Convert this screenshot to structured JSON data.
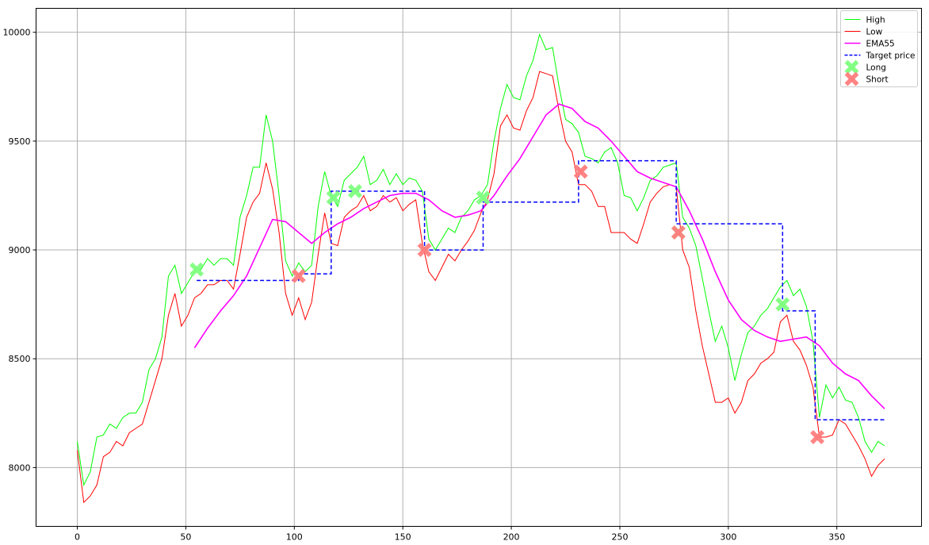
{
  "chart_data": {
    "type": "line",
    "title": "",
    "xlabel": "",
    "ylabel": "",
    "xlim": [
      -19,
      389
    ],
    "ylim": [
      7730,
      10110
    ],
    "xticks": [
      0,
      50,
      100,
      150,
      200,
      250,
      300,
      350
    ],
    "yticks": [
      8000,
      8500,
      9000,
      9500,
      10000
    ],
    "grid": true,
    "legend_position": "top-right",
    "colors": {
      "high": "#00ff00",
      "low": "#ff0000",
      "ema": "#ff00ff",
      "target": "#0000ff",
      "long": "#80ff80",
      "short": "#ff7f7f"
    },
    "series": [
      {
        "name": "High",
        "x": [
          0,
          3,
          6,
          9,
          12,
          15,
          18,
          21,
          24,
          27,
          30,
          33,
          36,
          39,
          42,
          45,
          48,
          51,
          54,
          57,
          60,
          63,
          66,
          69,
          72,
          75,
          78,
          81,
          84,
          87,
          90,
          93,
          96,
          99,
          102,
          105,
          108,
          111,
          114,
          117,
          120,
          123,
          126,
          129,
          132,
          135,
          138,
          141,
          144,
          147,
          150,
          153,
          156,
          159,
          162,
          165,
          168,
          171,
          174,
          177,
          180,
          183,
          186,
          189,
          192,
          195,
          198,
          201,
          204,
          207,
          210,
          213,
          216,
          219,
          222,
          225,
          228,
          231,
          234,
          237,
          240,
          243,
          246,
          249,
          252,
          255,
          258,
          261,
          264,
          267,
          270,
          273,
          276,
          279,
          282,
          285,
          288,
          291,
          294,
          297,
          300,
          303,
          306,
          309,
          312,
          315,
          318,
          321,
          324,
          327,
          330,
          333,
          336,
          339,
          342,
          345,
          348,
          351,
          354,
          357,
          360,
          363,
          366,
          369,
          372
        ],
        "values": [
          8120,
          7920,
          7980,
          8140,
          8150,
          8200,
          8180,
          8230,
          8250,
          8250,
          8300,
          8450,
          8500,
          8600,
          8880,
          8930,
          8800,
          8850,
          8900,
          8910,
          8960,
          8930,
          8960,
          8960,
          8930,
          9150,
          9250,
          9380,
          9380,
          9620,
          9500,
          9250,
          8950,
          8880,
          8940,
          8900,
          8930,
          9200,
          9360,
          9250,
          9200,
          9320,
          9350,
          9380,
          9430,
          9300,
          9320,
          9370,
          9300,
          9350,
          9300,
          9330,
          9320,
          9270,
          9050,
          9000,
          9050,
          9100,
          9080,
          9150,
          9180,
          9230,
          9250,
          9300,
          9500,
          9650,
          9760,
          9700,
          9690,
          9800,
          9870,
          9990,
          9920,
          9930,
          9750,
          9600,
          9580,
          9540,
          9430,
          9420,
          9400,
          9450,
          9470,
          9400,
          9250,
          9240,
          9180,
          9240,
          9320,
          9340,
          9380,
          9390,
          9400,
          9150,
          9100,
          9020,
          8870,
          8720,
          8580,
          8650,
          8550,
          8400,
          8520,
          8620,
          8650,
          8700,
          8730,
          8780,
          8830,
          8860,
          8790,
          8820,
          8740,
          8580,
          8230,
          8380,
          8320,
          8370,
          8310,
          8300,
          8230,
          8120,
          8070,
          8120,
          8100
        ]
      },
      {
        "name": "Low",
        "x": [
          0,
          3,
          6,
          9,
          12,
          15,
          18,
          21,
          24,
          27,
          30,
          33,
          36,
          39,
          42,
          45,
          48,
          51,
          54,
          57,
          60,
          63,
          66,
          69,
          72,
          75,
          78,
          81,
          84,
          87,
          90,
          93,
          96,
          99,
          102,
          105,
          108,
          111,
          114,
          117,
          120,
          123,
          126,
          129,
          132,
          135,
          138,
          141,
          144,
          147,
          150,
          153,
          156,
          159,
          162,
          165,
          168,
          171,
          174,
          177,
          180,
          183,
          186,
          189,
          192,
          195,
          198,
          201,
          204,
          207,
          210,
          213,
          216,
          219,
          222,
          225,
          228,
          231,
          234,
          237,
          240,
          243,
          246,
          249,
          252,
          255,
          258,
          261,
          264,
          267,
          270,
          273,
          276,
          279,
          282,
          285,
          288,
          291,
          294,
          297,
          300,
          303,
          306,
          309,
          312,
          315,
          318,
          321,
          324,
          327,
          330,
          333,
          336,
          339,
          342,
          345,
          348,
          351,
          354,
          357,
          360,
          363,
          366,
          369,
          372
        ],
        "values": [
          8080,
          7840,
          7870,
          7920,
          8050,
          8070,
          8120,
          8100,
          8160,
          8180,
          8200,
          8300,
          8400,
          8500,
          8700,
          8800,
          8650,
          8700,
          8780,
          8800,
          8840,
          8840,
          8860,
          8860,
          8820,
          8980,
          9150,
          9220,
          9260,
          9400,
          9280,
          9080,
          8800,
          8700,
          8780,
          8680,
          8760,
          8980,
          9170,
          9030,
          9020,
          9150,
          9180,
          9200,
          9250,
          9180,
          9200,
          9250,
          9220,
          9240,
          9180,
          9210,
          9230,
          9030,
          8900,
          8860,
          8920,
          8980,
          8950,
          9000,
          9040,
          9090,
          9170,
          9230,
          9350,
          9570,
          9620,
          9560,
          9550,
          9640,
          9700,
          9820,
          9810,
          9800,
          9640,
          9500,
          9450,
          9300,
          9300,
          9270,
          9200,
          9200,
          9080,
          9080,
          9080,
          9050,
          9030,
          9120,
          9220,
          9260,
          9290,
          9300,
          9290,
          9000,
          8920,
          8720,
          8560,
          8430,
          8300,
          8300,
          8320,
          8250,
          8300,
          8400,
          8430,
          8480,
          8500,
          8530,
          8670,
          8700,
          8580,
          8540,
          8470,
          8370,
          8140,
          8140,
          8150,
          8220,
          8200,
          8150,
          8100,
          8040,
          7960,
          8010,
          8040
        ]
      },
      {
        "name": "EMA55",
        "x": [
          54,
          60,
          66,
          72,
          78,
          84,
          90,
          96,
          102,
          108,
          114,
          120,
          126,
          132,
          138,
          144,
          150,
          156,
          162,
          168,
          174,
          180,
          186,
          192,
          198,
          204,
          210,
          216,
          222,
          228,
          234,
          240,
          246,
          252,
          258,
          264,
          270,
          276,
          282,
          288,
          294,
          300,
          306,
          312,
          318,
          324,
          330,
          336,
          342,
          348,
          354,
          360,
          366,
          372
        ],
        "values": [
          8550,
          8640,
          8720,
          8790,
          8880,
          9010,
          9140,
          9130,
          9080,
          9030,
          9080,
          9120,
          9150,
          9190,
          9220,
          9250,
          9260,
          9260,
          9230,
          9180,
          9150,
          9160,
          9180,
          9250,
          9340,
          9420,
          9520,
          9620,
          9670,
          9650,
          9590,
          9560,
          9500,
          9430,
          9360,
          9330,
          9310,
          9290,
          9180,
          9050,
          8900,
          8770,
          8680,
          8630,
          8600,
          8580,
          8590,
          8600,
          8560,
          8480,
          8430,
          8400,
          8330,
          8270
        ]
      },
      {
        "name": "Target price",
        "step": true,
        "x": [
          55,
          102,
          102,
          117,
          117,
          160,
          160,
          187,
          187,
          231,
          231,
          276,
          276,
          325,
          325,
          340,
          340,
          372
        ],
        "values": [
          8860,
          8860,
          8890,
          8890,
          9270,
          9270,
          9000,
          9000,
          9220,
          9220,
          9410,
          9410,
          9120,
          9120,
          8720,
          8720,
          8220,
          8220
        ]
      }
    ],
    "markers": [
      {
        "name": "Long",
        "x": [
          55,
          118,
          128,
          187,
          277,
          325
        ],
        "values": [
          8910,
          9240,
          9270,
          9240,
          9080,
          8750
        ]
      },
      {
        "name": "Short",
        "x": [
          102,
          160,
          232,
          277,
          341
        ],
        "values": [
          8880,
          9000,
          9360,
          9080,
          8140
        ]
      }
    ]
  }
}
